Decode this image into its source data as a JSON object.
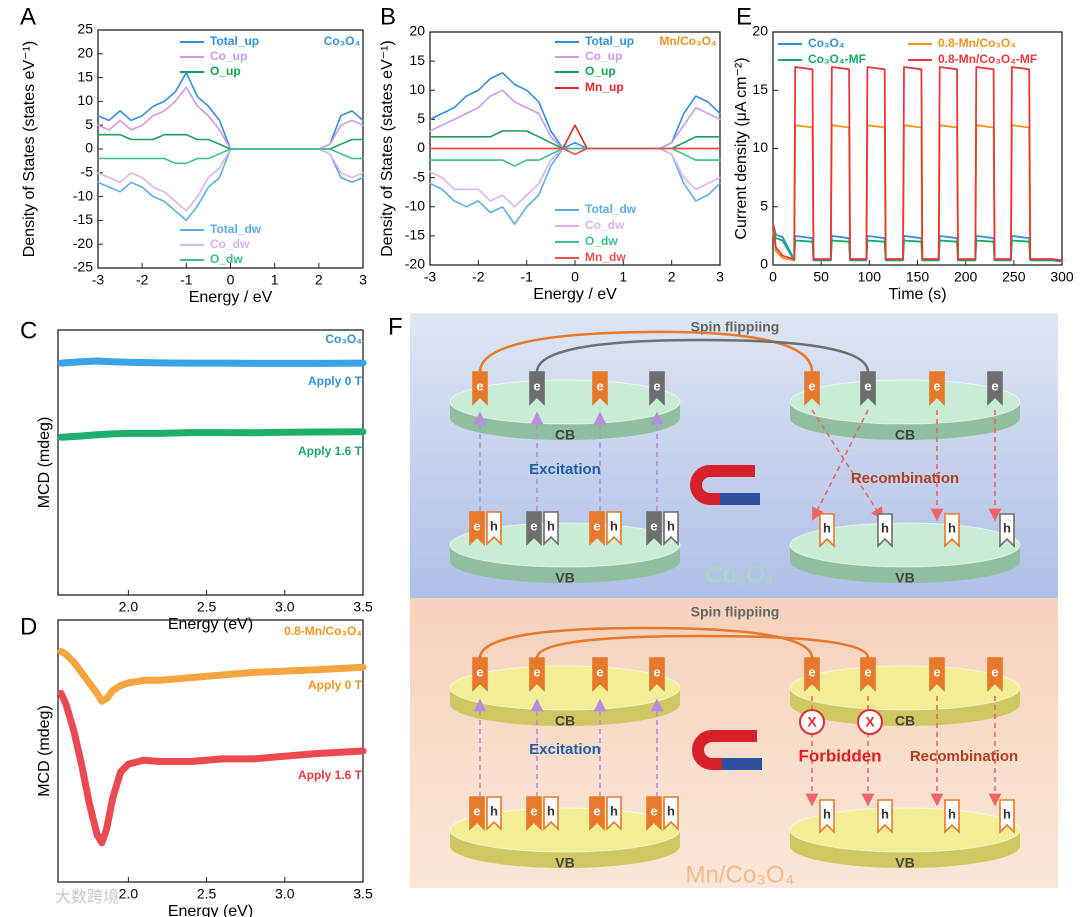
{
  "chart_data": [
    {
      "type": "line",
      "panel": "A",
      "xlabel": "Energy / eV",
      "ylabel": "Density of States (states eV⁻¹)",
      "xlim": [
        -3,
        3
      ],
      "xticks": [
        -3,
        -2,
        -1,
        0,
        1,
        2,
        3
      ],
      "ylim": [
        -25,
        25
      ],
      "yticks": [
        -25,
        -20,
        -15,
        -10,
        -5,
        0,
        5,
        10,
        15,
        20,
        25
      ],
      "x": [
        -3,
        -2.75,
        -2.5,
        -2.25,
        -2,
        -1.75,
        -1.5,
        -1.25,
        -1,
        -0.75,
        -0.5,
        -0.25,
        0,
        0.25,
        0.5,
        0.75,
        1,
        1.25,
        1.5,
        1.75,
        2,
        2.25,
        2.5,
        2.75,
        3
      ],
      "annotations": [
        {
          "text": "Co₃O₄",
          "color": "#2f93d8"
        }
      ],
      "series": [
        {
          "name": "Total_up",
          "color": "#2f8fdc",
          "values": [
            7,
            6,
            8,
            6,
            7,
            9,
            10,
            12,
            16,
            11,
            9,
            6,
            0,
            0,
            0,
            0,
            0,
            0,
            0,
            0,
            0,
            1,
            7,
            8,
            6
          ]
        },
        {
          "name": "Co_up",
          "color": "#cf98ea",
          "values": [
            5,
            4,
            6,
            4,
            5,
            7,
            8,
            10,
            13,
            9,
            7,
            4,
            0,
            0,
            0,
            0,
            0,
            0,
            0,
            0,
            0,
            1,
            5,
            6,
            5
          ]
        },
        {
          "name": "O_up",
          "color": "#16a05a",
          "values": [
            3,
            3,
            3,
            2,
            2,
            2,
            3,
            3,
            3,
            2,
            2,
            1,
            0,
            0,
            0,
            0,
            0,
            0,
            0,
            0,
            0,
            0,
            1,
            2,
            2
          ]
        },
        {
          "name": "Total_dw",
          "color": "#5aaee4",
          "values": [
            -7,
            -8,
            -9,
            -7,
            -8,
            -10,
            -11,
            -13,
            -15,
            -12,
            -8,
            -6,
            0,
            0,
            0,
            0,
            0,
            0,
            0,
            0,
            0,
            -1,
            -6,
            -7,
            -6
          ]
        },
        {
          "name": "Co_dw",
          "color": "#dcb2f0",
          "values": [
            -5,
            -6,
            -7,
            -5,
            -6,
            -8,
            -9,
            -11,
            -13,
            -10,
            -6,
            -4,
            0,
            0,
            0,
            0,
            0,
            0,
            0,
            0,
            0,
            -1,
            -5,
            -6,
            -5
          ]
        },
        {
          "name": "O_dw",
          "color": "#3cc084",
          "values": [
            -2,
            -2,
            -2,
            -2,
            -2,
            -2,
            -2,
            -3,
            -3,
            -2,
            -2,
            -1,
            0,
            0,
            0,
            0,
            0,
            0,
            0,
            0,
            0,
            0,
            -1,
            -2,
            -2
          ]
        }
      ]
    },
    {
      "type": "line",
      "panel": "B",
      "xlabel": "Energy / eV",
      "ylabel": "Density of States (states eV⁻¹)",
      "xlim": [
        -3,
        3
      ],
      "xticks": [
        -3,
        -2,
        -1,
        0,
        1,
        2,
        3
      ],
      "ylim": [
        -20,
        20
      ],
      "yticks": [
        -20,
        -15,
        -10,
        -5,
        0,
        5,
        10,
        15,
        20
      ],
      "x": [
        -3,
        -2.75,
        -2.5,
        -2.25,
        -2,
        -1.75,
        -1.5,
        -1.25,
        -1,
        -0.75,
        -0.5,
        -0.25,
        0,
        0.25,
        0.5,
        0.75,
        1,
        1.25,
        1.5,
        1.75,
        2,
        2.25,
        2.5,
        2.75,
        3
      ],
      "annotations": [
        {
          "text": "Mn/Co₃O₄",
          "color": "#f0901e"
        }
      ],
      "series": [
        {
          "name": "Total_up",
          "color": "#2f8fdc",
          "values": [
            5,
            6,
            7,
            9,
            10,
            12,
            13,
            11,
            10,
            8,
            3,
            0,
            1,
            0,
            0,
            0,
            0,
            0,
            0,
            0,
            1,
            6,
            9,
            8,
            6
          ]
        },
        {
          "name": "Co_up",
          "color": "#cf98ea",
          "values": [
            3,
            4,
            5,
            6,
            7,
            9,
            10,
            8,
            7,
            6,
            2,
            0,
            0,
            0,
            0,
            0,
            0,
            0,
            0,
            0,
            1,
            4,
            7,
            6,
            5
          ]
        },
        {
          "name": "O_up",
          "color": "#16a05a",
          "values": [
            2,
            2,
            2,
            2,
            2,
            2,
            3,
            3,
            3,
            2,
            1,
            0,
            0,
            0,
            0,
            0,
            0,
            0,
            0,
            0,
            0,
            1,
            2,
            2,
            2
          ]
        },
        {
          "name": "Mn_up",
          "color": "#e02828",
          "values": [
            0,
            0,
            0,
            0,
            0,
            0,
            0,
            0,
            0,
            0,
            0,
            0,
            4,
            0,
            0,
            0,
            0,
            0,
            0,
            0,
            0,
            0,
            0,
            0,
            0
          ]
        },
        {
          "name": "Total_dw",
          "color": "#5aaee4",
          "values": [
            -6,
            -7,
            -9,
            -10,
            -9,
            -11,
            -10,
            -13,
            -10,
            -8,
            -3,
            0,
            -1,
            0,
            0,
            0,
            0,
            0,
            0,
            0,
            -1,
            -6,
            -9,
            -8,
            -6
          ]
        },
        {
          "name": "Co_dw",
          "color": "#dcb2f0",
          "values": [
            -4,
            -5,
            -7,
            -7,
            -7,
            -9,
            -8,
            -10,
            -8,
            -6,
            -2,
            0,
            0,
            0,
            0,
            0,
            0,
            0,
            0,
            0,
            -1,
            -5,
            -7,
            -6,
            -5
          ]
        },
        {
          "name": "O_dw",
          "color": "#3cc084",
          "values": [
            -2,
            -2,
            -2,
            -2,
            -2,
            -2,
            -2,
            -3,
            -2,
            -2,
            -1,
            0,
            0,
            0,
            0,
            0,
            0,
            0,
            0,
            0,
            0,
            -1,
            -2,
            -2,
            -2
          ]
        },
        {
          "name": "Mn_dw",
          "color": "#ee5050",
          "values": [
            0,
            0,
            0,
            0,
            0,
            0,
            0,
            0,
            0,
            0,
            0,
            0,
            -1,
            0,
            0,
            0,
            0,
            0,
            0,
            0,
            0,
            0,
            0,
            0,
            0
          ]
        }
      ]
    },
    {
      "type": "line",
      "panel": "E",
      "xlabel": "Time (s)",
      "ylabel": "Current density (μA cm⁻²)",
      "xlim": [
        0,
        300
      ],
      "xticks": [
        0,
        50,
        100,
        150,
        200,
        250,
        300
      ],
      "ylim": [
        0,
        20
      ],
      "yticks": [
        0,
        5,
        10,
        15,
        20
      ],
      "x": [
        0,
        3,
        10,
        22,
        23,
        41,
        42,
        60,
        61,
        79,
        80,
        97,
        98,
        116,
        117,
        135,
        136,
        154,
        155,
        172,
        173,
        191,
        192,
        210,
        211,
        229,
        230,
        247,
        248,
        266,
        267,
        290,
        300
      ],
      "annotations": [],
      "series": [
        {
          "name": "Co₃O₄",
          "color": "#2f93d8",
          "values": [
            3.6,
            2.6,
            2.4,
            0.5,
            2.5,
            2.3,
            0.5,
            0.5,
            2.5,
            2.3,
            0.5,
            0.5,
            2.5,
            2.3,
            0.5,
            0.5,
            2.5,
            2.3,
            0.5,
            0.5,
            2.5,
            2.3,
            0.5,
            0.5,
            2.5,
            2.3,
            0.5,
            0.5,
            2.5,
            2.3,
            0.5,
            0.5,
            0.4
          ]
        },
        {
          "name": "0.8-Mn/Co₃O₄",
          "color": "#f0941e",
          "values": [
            3,
            1.2,
            0.6,
            0.4,
            12,
            11.8,
            0.4,
            0.4,
            12,
            11.8,
            0.4,
            0.4,
            12,
            11.8,
            0.4,
            0.4,
            12,
            11.8,
            0.4,
            0.4,
            12,
            11.8,
            0.4,
            0.4,
            12,
            11.8,
            0.4,
            0.4,
            12,
            11.8,
            0.4,
            0.4,
            0.3
          ]
        },
        {
          "name": "Co₃O₄-MF",
          "color": "#18a866",
          "values": [
            3.2,
            2.3,
            2.1,
            0.4,
            2.1,
            2,
            0.4,
            0.4,
            2.1,
            2,
            0.4,
            0.4,
            2.1,
            2,
            0.4,
            0.4,
            2.1,
            2,
            0.4,
            0.4,
            2.1,
            2,
            0.4,
            0.4,
            2.1,
            2,
            0.4,
            0.4,
            2.1,
            2,
            0.4,
            0.4,
            0.3
          ]
        },
        {
          "name": "0.8-Mn/Co₃O₄-MF",
          "color": "#e8383c",
          "values": [
            3.5,
            1.5,
            0.8,
            0.5,
            17,
            16.8,
            0.5,
            0.5,
            17,
            16.8,
            0.5,
            0.5,
            17,
            16.8,
            0.5,
            0.5,
            17,
            16.8,
            0.5,
            0.5,
            17,
            16.8,
            0.5,
            0.5,
            17,
            16.8,
            0.5,
            0.5,
            17,
            16.8,
            0.5,
            0.5,
            0.4
          ]
        }
      ]
    },
    {
      "type": "line",
      "panel": "C",
      "xlabel": "Energy (eV)",
      "ylabel": "MCD (mdeg)",
      "xlim": [
        1.55,
        3.5
      ],
      "xticks": [
        {
          "value": 2,
          "label": "2.0"
        },
        2.5,
        {
          "value": 3,
          "label": "3.0"
        },
        3.5
      ],
      "ylim": [
        0,
        100
      ],
      "x": [
        1.57,
        1.7,
        1.8,
        1.9,
        2,
        2.2,
        2.4,
        2.6,
        2.8,
        3,
        3.2,
        3.5
      ],
      "annotations": [
        {
          "text": "Co₃O₄",
          "color": "#2f93d8"
        },
        {
          "text": "Apply 0 T",
          "color": "#2f93d8"
        },
        {
          "text": "Apply 1.6 T",
          "color": "#18a866"
        }
      ],
      "series": [
        {
          "name": "Apply 0 T",
          "color": "#3aa2e6",
          "values": [
            87.5,
            88,
            88.3,
            88,
            87.8,
            87.6,
            87.5,
            87.5,
            87.4,
            87.4,
            87.4,
            87.5
          ]
        },
        {
          "name": "Apply 1.6 T",
          "color": "#1fae6a",
          "values": [
            59.5,
            60,
            60.5,
            60.8,
            61,
            61,
            61.3,
            61.3,
            61.2,
            61.4,
            61.5,
            61.6
          ]
        }
      ]
    },
    {
      "type": "line",
      "panel": "D",
      "xlabel": "Energy (eV)",
      "ylabel": "MCD (mdeg)",
      "xlim": [
        1.55,
        3.5
      ],
      "xticks": [
        {
          "value": 2,
          "label": "2.0"
        },
        2.5,
        {
          "value": 3,
          "label": "3.0"
        },
        3.5
      ],
      "ylim": [
        0,
        100
      ],
      "x": [
        1.57,
        1.6,
        1.65,
        1.7,
        1.75,
        1.8,
        1.83,
        1.86,
        1.9,
        1.95,
        2,
        2.1,
        2.2,
        2.4,
        2.6,
        2.8,
        3,
        3.2,
        3.5
      ],
      "annotations": [
        {
          "text": "0.8-Mn/Co₃O₄",
          "color": "#f0941e"
        },
        {
          "text": "Apply 0 T",
          "color": "#f0941e"
        },
        {
          "text": "Apply 1.6 T",
          "color": "#e8383c"
        }
      ],
      "series": [
        {
          "name": "Apply 0 T",
          "color": "#f5a540",
          "values": [
            88,
            87,
            84,
            80,
            76,
            72,
            69,
            70,
            73,
            75,
            76,
            77,
            77,
            78,
            79,
            80,
            80.5,
            81,
            82
          ]
        },
        {
          "name": "Apply 1.6 T",
          "color": "#ec4850",
          "values": [
            72,
            68,
            58,
            45,
            30,
            18,
            15,
            20,
            32,
            42,
            45,
            46.5,
            46,
            46,
            47,
            47,
            48,
            49,
            50
          ]
        }
      ]
    }
  ],
  "diagram": {
    "panel": "F",
    "electron": "e",
    "hole": "h",
    "cb": "CB",
    "vb": "VB",
    "spin": "Spin flippiing",
    "excitation": "Excitation",
    "recombination": "Recombination",
    "top_material": "Co₃O₄",
    "bottom_material": "Mn/Co₃O₄",
    "forbidden": "Forbidden",
    "blocked": "X"
  },
  "watermark": "大数跨境"
}
